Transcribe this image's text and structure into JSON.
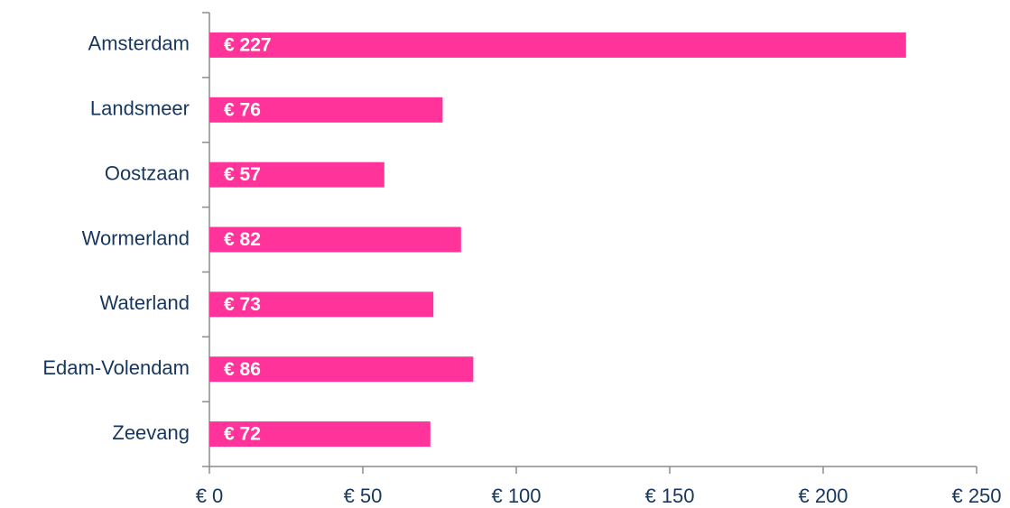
{
  "chart_data": {
    "type": "bar",
    "orientation": "horizontal",
    "categories": [
      "Amsterdam",
      "Landsmeer",
      "Oostzaan",
      "Wormerland",
      "Waterland",
      "Edam-Volendam",
      "Zeevang"
    ],
    "values": [
      227,
      76,
      57,
      82,
      73,
      86,
      72
    ],
    "value_labels": [
      "€ 227",
      "€ 76",
      "€ 57",
      "€ 82",
      "€ 73",
      "€ 86",
      "€ 72"
    ],
    "color": "#ff3399",
    "xlim": [
      0,
      250
    ],
    "xticks": [
      {
        "value": 0,
        "label": "€ 0"
      },
      {
        "value": 50,
        "label": "€ 50"
      },
      {
        "value": 100,
        "label": "€ 100"
      },
      {
        "value": 150,
        "label": "€ 150"
      },
      {
        "value": 200,
        "label": "€ 200"
      },
      {
        "value": 250,
        "label": "€ 250"
      }
    ],
    "grid": false
  }
}
